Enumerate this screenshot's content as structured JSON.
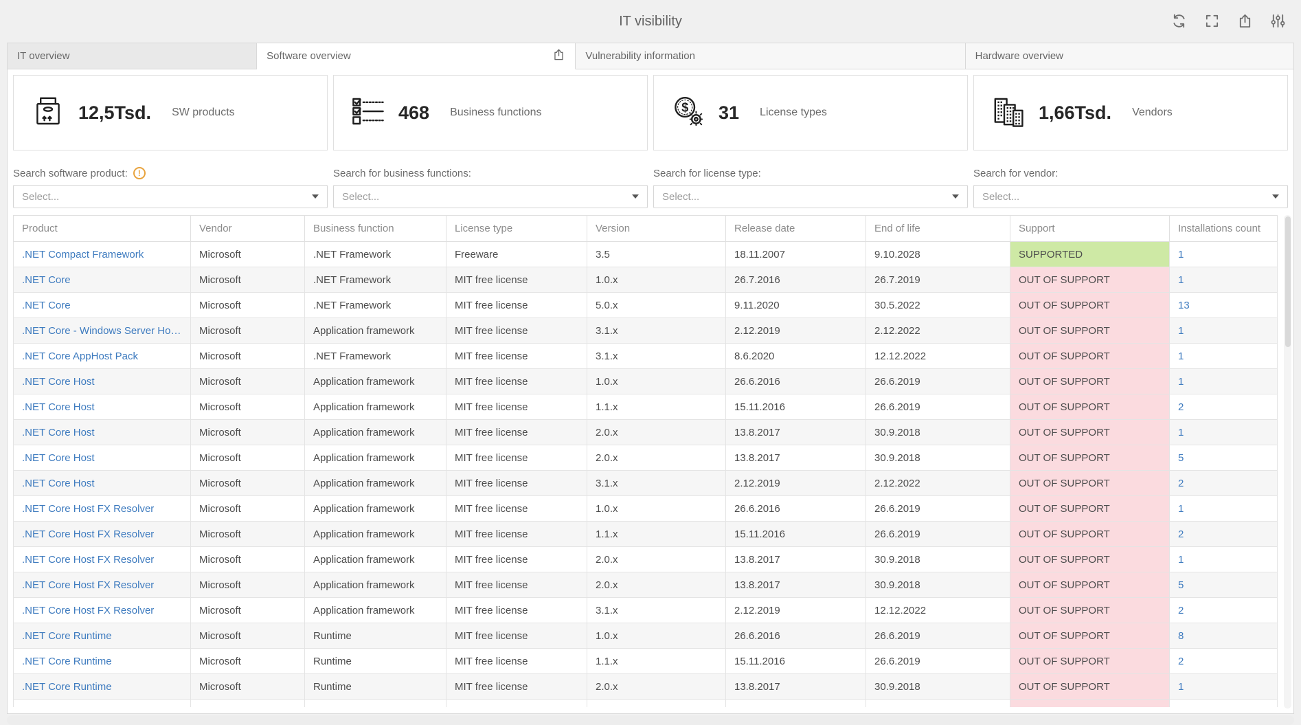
{
  "header": {
    "title": "IT visibility",
    "toolbar_icons": [
      "refresh",
      "fullscreen",
      "export",
      "settings-sliders"
    ]
  },
  "tabs": [
    {
      "label": "IT overview",
      "active": false
    },
    {
      "label": "Software overview",
      "active": true,
      "share_icon": true
    },
    {
      "label": "Vulnerability information",
      "active": false
    },
    {
      "label": "Hardware overview",
      "active": false
    }
  ],
  "kpis": [
    {
      "icon": "package-icon",
      "value": "12,5Tsd.",
      "label": "SW products"
    },
    {
      "icon": "checklist-icon",
      "value": "468",
      "label": "Business functions"
    },
    {
      "icon": "dollar-gear-icon",
      "value": "31",
      "label": "License types"
    },
    {
      "icon": "buildings-icon",
      "value": "1,66Tsd.",
      "label": "Vendors"
    }
  ],
  "filters": [
    {
      "label": "Search software product:",
      "warning": true,
      "placeholder": "Select..."
    },
    {
      "label": "Search for business functions:",
      "warning": false,
      "placeholder": "Select..."
    },
    {
      "label": "Search for license type:",
      "warning": false,
      "placeholder": "Select..."
    },
    {
      "label": "Search for vendor:",
      "warning": false,
      "placeholder": "Select..."
    }
  ],
  "table": {
    "columns": [
      "Product",
      "Vendor",
      "Business function",
      "License type",
      "Version",
      "Release date",
      "End of life",
      "Support",
      "Installations count"
    ],
    "status_colors": {
      "SUPPORTED": "#cee9a5",
      "OUT OF SUPPORT": "#fbdbdf"
    },
    "link_color": "#3e7bbf",
    "rows": [
      {
        "product": ".NET Compact Framework",
        "vendor": "Microsoft",
        "business_function": ".NET Framework",
        "license_type": "Freeware",
        "version": "3.5",
        "release_date": "18.11.2007",
        "end_of_life": "9.10.2028",
        "support": "SUPPORTED",
        "installations": "1"
      },
      {
        "product": ".NET Core",
        "vendor": "Microsoft",
        "business_function": ".NET Framework",
        "license_type": "MIT free license",
        "version": "1.0.x",
        "release_date": "26.7.2016",
        "end_of_life": "26.7.2019",
        "support": "OUT OF SUPPORT",
        "installations": "1"
      },
      {
        "product": ".NET Core",
        "vendor": "Microsoft",
        "business_function": ".NET Framework",
        "license_type": "MIT free license",
        "version": "5.0.x",
        "release_date": "9.11.2020",
        "end_of_life": "30.5.2022",
        "support": "OUT OF SUPPORT",
        "installations": "13"
      },
      {
        "product": ".NET Core - Windows Server Hos...",
        "vendor": "Microsoft",
        "business_function": "Application framework",
        "license_type": "MIT free license",
        "version": "3.1.x",
        "release_date": "2.12.2019",
        "end_of_life": "2.12.2022",
        "support": "OUT OF SUPPORT",
        "installations": "1"
      },
      {
        "product": ".NET Core AppHost Pack",
        "vendor": "Microsoft",
        "business_function": ".NET Framework",
        "license_type": "MIT free license",
        "version": "3.1.x",
        "release_date": "8.6.2020",
        "end_of_life": "12.12.2022",
        "support": "OUT OF SUPPORT",
        "installations": "1"
      },
      {
        "product": ".NET Core Host",
        "vendor": "Microsoft",
        "business_function": "Application framework",
        "license_type": "MIT free license",
        "version": "1.0.x",
        "release_date": "26.6.2016",
        "end_of_life": "26.6.2019",
        "support": "OUT OF SUPPORT",
        "installations": "1"
      },
      {
        "product": ".NET Core Host",
        "vendor": "Microsoft",
        "business_function": "Application framework",
        "license_type": "MIT free license",
        "version": "1.1.x",
        "release_date": "15.11.2016",
        "end_of_life": "26.6.2019",
        "support": "OUT OF SUPPORT",
        "installations": "2"
      },
      {
        "product": ".NET Core Host",
        "vendor": "Microsoft",
        "business_function": "Application framework",
        "license_type": "MIT free license",
        "version": "2.0.x",
        "release_date": "13.8.2017",
        "end_of_life": "30.9.2018",
        "support": "OUT OF SUPPORT",
        "installations": "1"
      },
      {
        "product": ".NET Core Host",
        "vendor": "Microsoft",
        "business_function": "Application framework",
        "license_type": "MIT free license",
        "version": "2.0.x",
        "release_date": "13.8.2017",
        "end_of_life": "30.9.2018",
        "support": "OUT OF SUPPORT",
        "installations": "5"
      },
      {
        "product": ".NET Core Host",
        "vendor": "Microsoft",
        "business_function": "Application framework",
        "license_type": "MIT free license",
        "version": "3.1.x",
        "release_date": "2.12.2019",
        "end_of_life": "2.12.2022",
        "support": "OUT OF SUPPORT",
        "installations": "2"
      },
      {
        "product": ".NET Core Host FX Resolver",
        "vendor": "Microsoft",
        "business_function": "Application framework",
        "license_type": "MIT free license",
        "version": "1.0.x",
        "release_date": "26.6.2016",
        "end_of_life": "26.6.2019",
        "support": "OUT OF SUPPORT",
        "installations": "1"
      },
      {
        "product": ".NET Core Host FX Resolver",
        "vendor": "Microsoft",
        "business_function": "Application framework",
        "license_type": "MIT free license",
        "version": "1.1.x",
        "release_date": "15.11.2016",
        "end_of_life": "26.6.2019",
        "support": "OUT OF SUPPORT",
        "installations": "2"
      },
      {
        "product": ".NET Core Host FX Resolver",
        "vendor": "Microsoft",
        "business_function": "Application framework",
        "license_type": "MIT free license",
        "version": "2.0.x",
        "release_date": "13.8.2017",
        "end_of_life": "30.9.2018",
        "support": "OUT OF SUPPORT",
        "installations": "1"
      },
      {
        "product": ".NET Core Host FX Resolver",
        "vendor": "Microsoft",
        "business_function": "Application framework",
        "license_type": "MIT free license",
        "version": "2.0.x",
        "release_date": "13.8.2017",
        "end_of_life": "30.9.2018",
        "support": "OUT OF SUPPORT",
        "installations": "5"
      },
      {
        "product": ".NET Core Host FX Resolver",
        "vendor": "Microsoft",
        "business_function": "Application framework",
        "license_type": "MIT free license",
        "version": "3.1.x",
        "release_date": "2.12.2019",
        "end_of_life": "12.12.2022",
        "support": "OUT OF SUPPORT",
        "installations": "2"
      },
      {
        "product": ".NET Core Runtime",
        "vendor": "Microsoft",
        "business_function": "Runtime",
        "license_type": "MIT free license",
        "version": "1.0.x",
        "release_date": "26.6.2016",
        "end_of_life": "26.6.2019",
        "support": "OUT OF SUPPORT",
        "installations": "8"
      },
      {
        "product": ".NET Core Runtime",
        "vendor": "Microsoft",
        "business_function": "Runtime",
        "license_type": "MIT free license",
        "version": "1.1.x",
        "release_date": "15.11.2016",
        "end_of_life": "26.6.2019",
        "support": "OUT OF SUPPORT",
        "installations": "2"
      },
      {
        "product": ".NET Core Runtime",
        "vendor": "Microsoft",
        "business_function": "Runtime",
        "license_type": "MIT free license",
        "version": "2.0.x",
        "release_date": "13.8.2017",
        "end_of_life": "30.9.2018",
        "support": "OUT OF SUPPORT",
        "installations": "1"
      }
    ]
  }
}
